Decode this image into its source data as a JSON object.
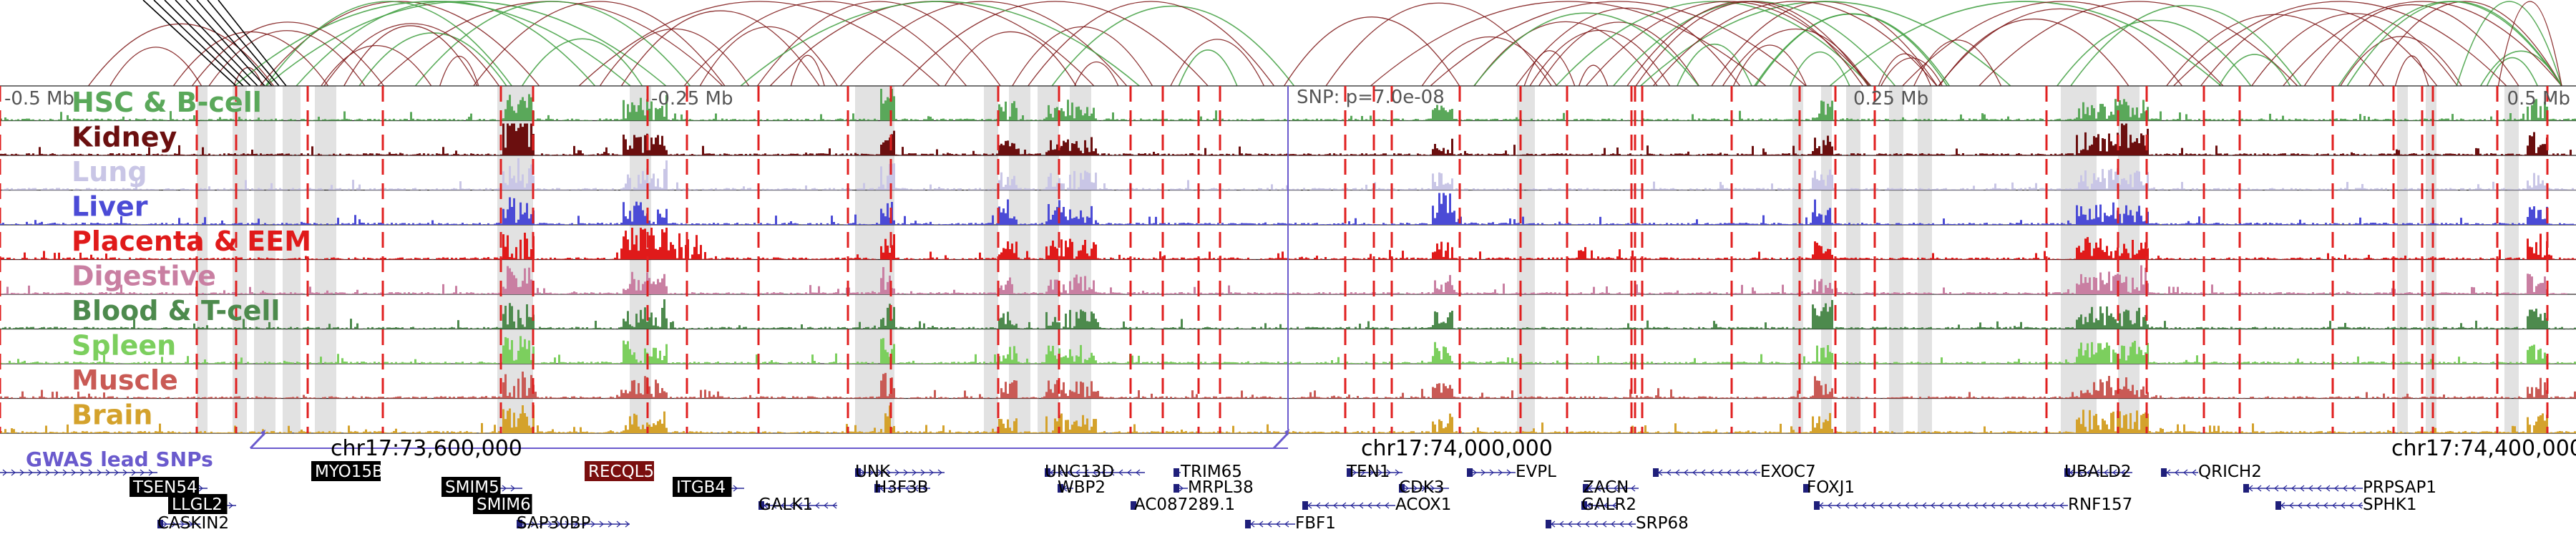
{
  "tracks": [
    {
      "label": "HSC & B-cell",
      "color": "#5aa85a"
    },
    {
      "label": "Kidney",
      "color": "#6b0f0f"
    },
    {
      "label": "Lung",
      "color": "#c9c6e6"
    },
    {
      "label": "Liver",
      "color": "#4b4bd6"
    },
    {
      "label": "Placenta & EEM",
      "color": "#e01a1a"
    },
    {
      "label": "Digestive",
      "color": "#c97fa2"
    },
    {
      "label": "Blood & T-cell",
      "color": "#4d8a4d"
    },
    {
      "label": "Spleen",
      "color": "#7ccf5e"
    },
    {
      "label": "Muscle",
      "color": "#c95a55"
    },
    {
      "label": "Brain",
      "color": "#d4a22c"
    }
  ],
  "axis_labels": [
    "-0.5 Mb",
    "-0.25 Mb",
    "SNP: p=7.0e-08",
    "0.25 Mb",
    "0.5 Mb"
  ],
  "gwas_label": "GWAS lead SNPs",
  "gwas_color": "#6a5acd",
  "coordinates": [
    "chr17:73,600,000",
    "chr17:74,000,000",
    "chr17:74,400,000"
  ],
  "genes": [
    {
      "name": "MYO15B",
      "boxed": true
    },
    {
      "name": "RECQL5",
      "boxed": true,
      "accent": "#7a0f0f"
    },
    {
      "name": "TSEN54",
      "boxed": true
    },
    {
      "name": "LLGL2",
      "boxed": true
    },
    {
      "name": "CASKIN2",
      "boxed": false
    },
    {
      "name": "SMIM5",
      "boxed": true
    },
    {
      "name": "SMIM6",
      "boxed": true
    },
    {
      "name": "SAP30BP",
      "boxed": false
    },
    {
      "name": "ITGB4",
      "boxed": true
    },
    {
      "name": "GALK1",
      "boxed": false
    },
    {
      "name": "UNK",
      "boxed": false
    },
    {
      "name": "H3F3B",
      "boxed": false
    },
    {
      "name": "UNC13D",
      "boxed": false
    },
    {
      "name": "WBP2",
      "boxed": false
    },
    {
      "name": "TRIM65",
      "boxed": false
    },
    {
      "name": "MRPL38",
      "boxed": false
    },
    {
      "name": "AC087289.1",
      "boxed": false
    },
    {
      "name": "FBF1",
      "boxed": false
    },
    {
      "name": "TEN1",
      "boxed": false
    },
    {
      "name": "CDK3",
      "boxed": false
    },
    {
      "name": "ACOX1",
      "boxed": false
    },
    {
      "name": "EVPL",
      "boxed": false
    },
    {
      "name": "ZACN",
      "boxed": false
    },
    {
      "name": "GALR2",
      "boxed": false
    },
    {
      "name": "SRP68",
      "boxed": false
    },
    {
      "name": "EXOC7",
      "boxed": false
    },
    {
      "name": "FOXJ1",
      "boxed": false
    },
    {
      "name": "RNF157",
      "boxed": false
    },
    {
      "name": "UBALD2",
      "boxed": false
    },
    {
      "name": "QRICH2",
      "boxed": false
    },
    {
      "name": "PRPSAP1",
      "boxed": false
    },
    {
      "name": "SPHK1",
      "boxed": false
    }
  ],
  "colors": {
    "link_dark": "#7a1212",
    "link_green": "#3f9f3f",
    "red_line": "#e02020",
    "highlight": "#e2e2e2"
  }
}
